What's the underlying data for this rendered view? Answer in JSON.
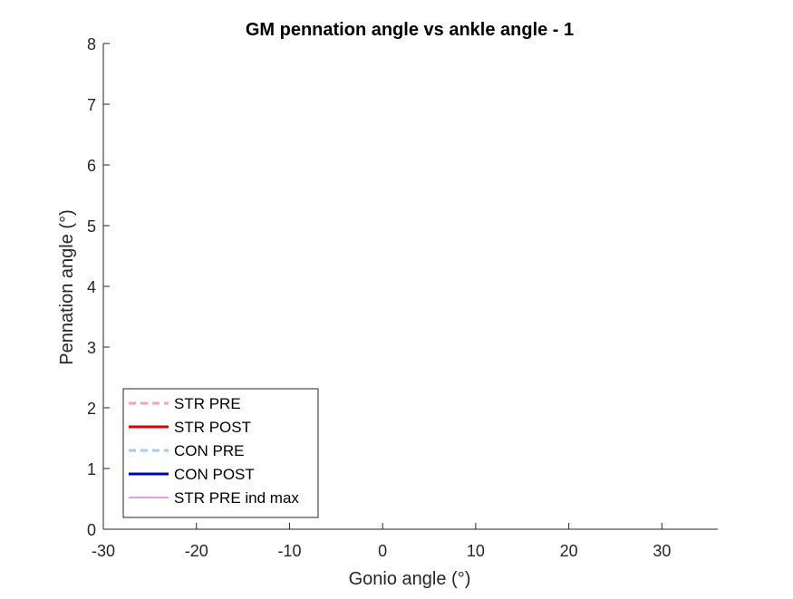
{
  "chart_data": {
    "type": "line",
    "title": "GM pennation angle vs ankle angle - 1",
    "xlabel": "Gonio angle (°)",
    "ylabel": "Pennation angle (°)",
    "xlim": [
      -30,
      36
    ],
    "ylim": [
      0,
      8
    ],
    "xticks": [
      -30,
      -20,
      -10,
      0,
      10,
      20,
      30
    ],
    "yticks": [
      0,
      1,
      2,
      3,
      4,
      5,
      6,
      7,
      8
    ],
    "grid": false,
    "legend_position": "bottom-left",
    "series": [
      {
        "name": "STR PRE",
        "color": "#F7A1C0",
        "dash": "dashed",
        "width": 3,
        "x": [],
        "y": []
      },
      {
        "name": "STR POST",
        "color": "#E00000",
        "dash": "solid",
        "width": 3,
        "x": [],
        "y": []
      },
      {
        "name": "CON PRE",
        "color": "#A3CBF7",
        "dash": "dashed",
        "width": 3,
        "x": [],
        "y": []
      },
      {
        "name": "CON POST",
        "color": "#0000CC",
        "dash": "solid",
        "width": 3,
        "x": [],
        "y": []
      },
      {
        "name": "STR PRE ind max",
        "color": "#C040C0",
        "dash": "solid",
        "width": 1,
        "x": [],
        "y": []
      }
    ]
  }
}
